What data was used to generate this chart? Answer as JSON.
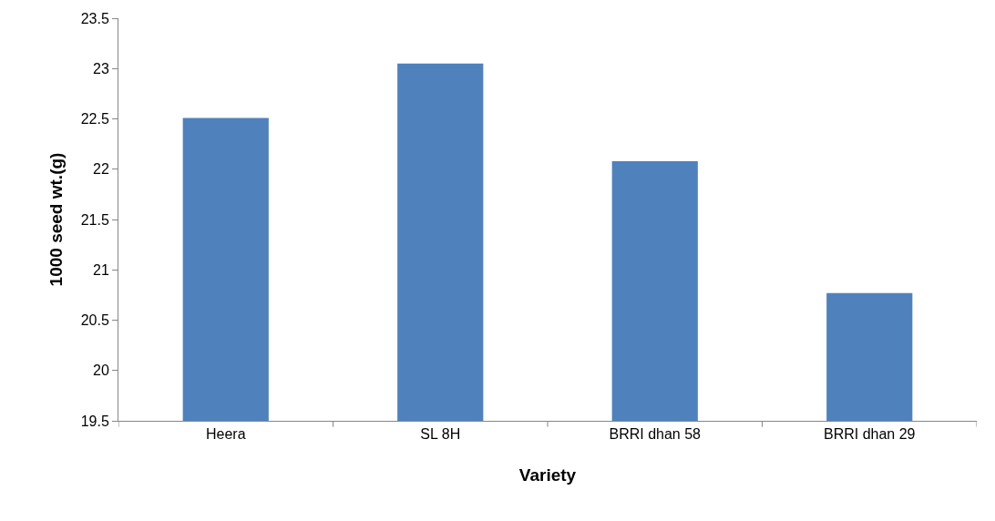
{
  "chart_data": {
    "type": "bar",
    "xlabel": "Variety",
    "ylabel": "1000 seed wt.(g)",
    "categories": [
      "Heera",
      "SL 8H",
      "BRRI dhan 58",
      "BRRI dhan 29"
    ],
    "values": [
      22.51,
      23.05,
      22.08,
      20.77
    ],
    "color": "#4f81bd",
    "ylim": [
      19.5,
      23.5
    ],
    "yticks": [
      19.5,
      20,
      20.5,
      21,
      21.5,
      22,
      22.5,
      23,
      23.5
    ]
  }
}
